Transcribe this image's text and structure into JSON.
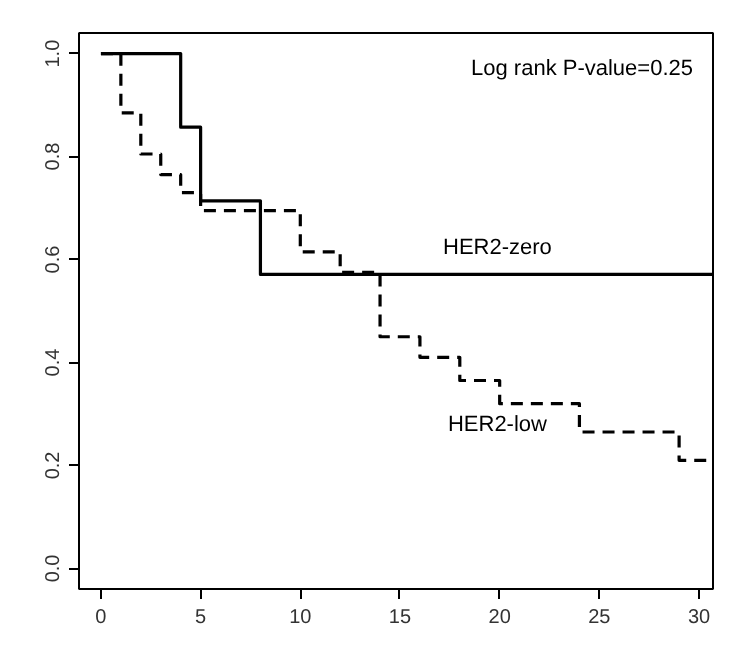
{
  "chart_data": {
    "type": "step",
    "x": [
      0,
      1,
      2,
      3,
      4,
      5,
      10,
      12,
      14,
      16,
      18,
      20,
      24,
      29,
      30.7
    ],
    "series": [
      {
        "name": "HER2-zero",
        "color": "#000000",
        "line_style": "solid",
        "x": [
          0,
          4,
          5,
          8,
          30.7
        ],
        "values": [
          1.0,
          0.857,
          0.714,
          0.571,
          0.571
        ]
      },
      {
        "name": "HER2-low",
        "color": "#000000",
        "line_style": "dashed",
        "values": [
          1.0,
          0.885,
          0.805,
          0.765,
          0.73,
          0.695,
          0.615,
          0.575,
          0.45,
          0.41,
          0.365,
          0.32,
          0.265,
          0.21,
          0.21
        ]
      }
    ],
    "annotations": [
      "Log rank P-value=0.25"
    ],
    "xlim": [
      -1.1,
      30.7
    ],
    "ylim": [
      -0.04,
      1.04
    ],
    "xticks": [
      0,
      5,
      10,
      15,
      20,
      25,
      30
    ],
    "yticks": [
      {
        "value": 0,
        "label": "0.0"
      },
      {
        "value": 0.2,
        "label": "0.2"
      },
      {
        "value": 0.4,
        "label": "0.4"
      },
      {
        "value": 0.6,
        "label": "0.6"
      },
      {
        "value": 0.8,
        "label": "0.8"
      },
      {
        "value": 1.0,
        "label": "1.0"
      }
    ],
    "grid": false
  }
}
